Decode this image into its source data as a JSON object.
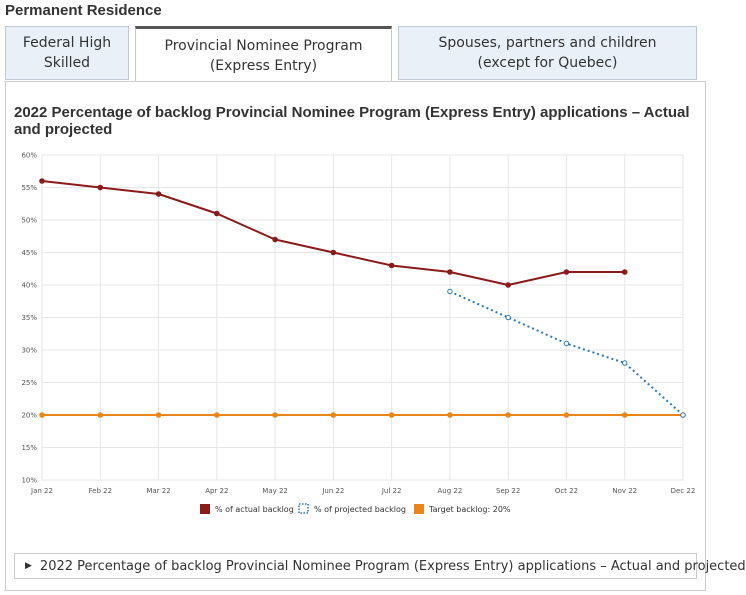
{
  "section_title": "Permanent Residence",
  "tabs": [
    {
      "label": "Federal High\nSkilled",
      "active": false
    },
    {
      "label": "Provincial Nominee Program\n(Express Entry)",
      "active": true
    },
    {
      "label": "Spouses, partners and children\n(except for Quebec)",
      "active": false
    }
  ],
  "details_label": "2022 Percentage of backlog Provincial Nominee Program (Express Entry) applications – Actual and projected",
  "chart_data": {
    "type": "line",
    "title": "2022 Percentage of backlog Provincial Nominee Program (Express Entry) applications – Actual and projected",
    "categories": [
      "Jan 22",
      "Feb 22",
      "Mar 22",
      "Apr 22",
      "May 22",
      "Jun 22",
      "Jul 22",
      "Aug 22",
      "Sep 22",
      "Oct 22",
      "Nov 22",
      "Dec 22"
    ],
    "ylim": [
      10,
      60
    ],
    "yticks": [
      "10%",
      "15%",
      "20%",
      "25%",
      "30%",
      "35%",
      "40%",
      "45%",
      "50%",
      "55%",
      "60%"
    ],
    "ytick_values": [
      10,
      15,
      20,
      25,
      30,
      35,
      40,
      45,
      50,
      55,
      60
    ],
    "grid": true,
    "legend_position": "bottom",
    "series": [
      {
        "name": "% of actual backlog",
        "color": "#8b1a1a",
        "style": "solid",
        "values": [
          56,
          55,
          54,
          51,
          47,
          45,
          43,
          42,
          40,
          42,
          42,
          null
        ]
      },
      {
        "name": "% of projected backlog",
        "color": "#2a7ab9",
        "style": "dotted",
        "values": [
          null,
          null,
          null,
          null,
          null,
          null,
          null,
          39,
          35,
          31,
          28,
          20
        ]
      },
      {
        "name": "Target backlog: 20%",
        "color": "#e8861a",
        "style": "solid",
        "values": [
          20,
          20,
          20,
          20,
          20,
          20,
          20,
          20,
          20,
          20,
          20,
          20
        ]
      }
    ]
  }
}
